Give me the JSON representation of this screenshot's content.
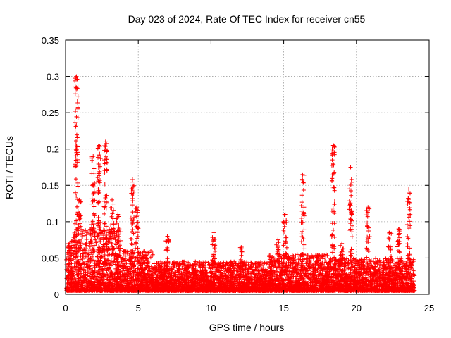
{
  "chart_data": {
    "type": "scatter",
    "title": "Day 023 of 2024, Rate Of TEC Index for receiver cn55",
    "xlabel": "GPS time / hours",
    "ylabel": "ROTI / TECUs",
    "xlim": [
      0,
      25
    ],
    "ylim": [
      0,
      0.35
    ],
    "xticks": [
      0,
      5,
      10,
      15,
      20,
      25
    ],
    "yticks": [
      0,
      0.05,
      0.1,
      0.15,
      0.2,
      0.25,
      0.3,
      0.35
    ],
    "xtick_labels": [
      "0",
      "5",
      "10",
      "15",
      "20",
      "25"
    ],
    "ytick_labels": [
      "0",
      "0.05",
      "0.1",
      "0.15",
      "0.2",
      "0.25",
      "0.3",
      "0.35"
    ],
    "grid": true,
    "marker": "+",
    "marker_color": "#ff0000",
    "series": [
      {
        "name": "ROTI",
        "base_band": [
          {
            "x_start": 0.0,
            "x_end": 0.5,
            "y_min": 0.005,
            "y_max": 0.075
          },
          {
            "x_start": 0.5,
            "x_end": 3.8,
            "y_min": 0.005,
            "y_max": 0.09
          },
          {
            "x_start": 3.8,
            "x_end": 6.0,
            "y_min": 0.005,
            "y_max": 0.06
          },
          {
            "x_start": 6.0,
            "x_end": 10.0,
            "y_min": 0.005,
            "y_max": 0.045
          },
          {
            "x_start": 10.0,
            "x_end": 14.0,
            "y_min": 0.005,
            "y_max": 0.045
          },
          {
            "x_start": 14.0,
            "x_end": 18.0,
            "y_min": 0.005,
            "y_max": 0.055
          },
          {
            "x_start": 18.0,
            "x_end": 22.0,
            "y_min": 0.005,
            "y_max": 0.05
          },
          {
            "x_start": 22.0,
            "x_end": 24.0,
            "y_min": 0.005,
            "y_max": 0.05
          }
        ],
        "spike_columns": [
          {
            "x": 0.75,
            "y_min": 0.05,
            "y_max": 0.3
          },
          {
            "x": 0.95,
            "y_min": 0.06,
            "y_max": 0.13
          },
          {
            "x": 1.9,
            "y_min": 0.05,
            "y_max": 0.19
          },
          {
            "x": 2.3,
            "y_min": 0.05,
            "y_max": 0.205
          },
          {
            "x": 2.75,
            "y_min": 0.05,
            "y_max": 0.21
          },
          {
            "x": 3.2,
            "y_min": 0.05,
            "y_max": 0.13
          },
          {
            "x": 3.6,
            "y_min": 0.05,
            "y_max": 0.11
          },
          {
            "x": 4.6,
            "y_min": 0.05,
            "y_max": 0.158
          },
          {
            "x": 4.9,
            "y_min": 0.05,
            "y_max": 0.12
          },
          {
            "x": 7.0,
            "y_min": 0.03,
            "y_max": 0.08
          },
          {
            "x": 10.2,
            "y_min": 0.04,
            "y_max": 0.085
          },
          {
            "x": 12.1,
            "y_min": 0.03,
            "y_max": 0.065
          },
          {
            "x": 14.6,
            "y_min": 0.03,
            "y_max": 0.075
          },
          {
            "x": 15.1,
            "y_min": 0.05,
            "y_max": 0.11
          },
          {
            "x": 16.3,
            "y_min": 0.05,
            "y_max": 0.165
          },
          {
            "x": 18.4,
            "y_min": 0.05,
            "y_max": 0.205
          },
          {
            "x": 19.0,
            "y_min": 0.04,
            "y_max": 0.07
          },
          {
            "x": 19.6,
            "y_min": 0.05,
            "y_max": 0.175
          },
          {
            "x": 20.8,
            "y_min": 0.05,
            "y_max": 0.12
          },
          {
            "x": 22.3,
            "y_min": 0.04,
            "y_max": 0.085
          },
          {
            "x": 22.9,
            "y_min": 0.04,
            "y_max": 0.09
          },
          {
            "x": 23.6,
            "y_min": 0.04,
            "y_max": 0.145
          }
        ]
      }
    ]
  }
}
